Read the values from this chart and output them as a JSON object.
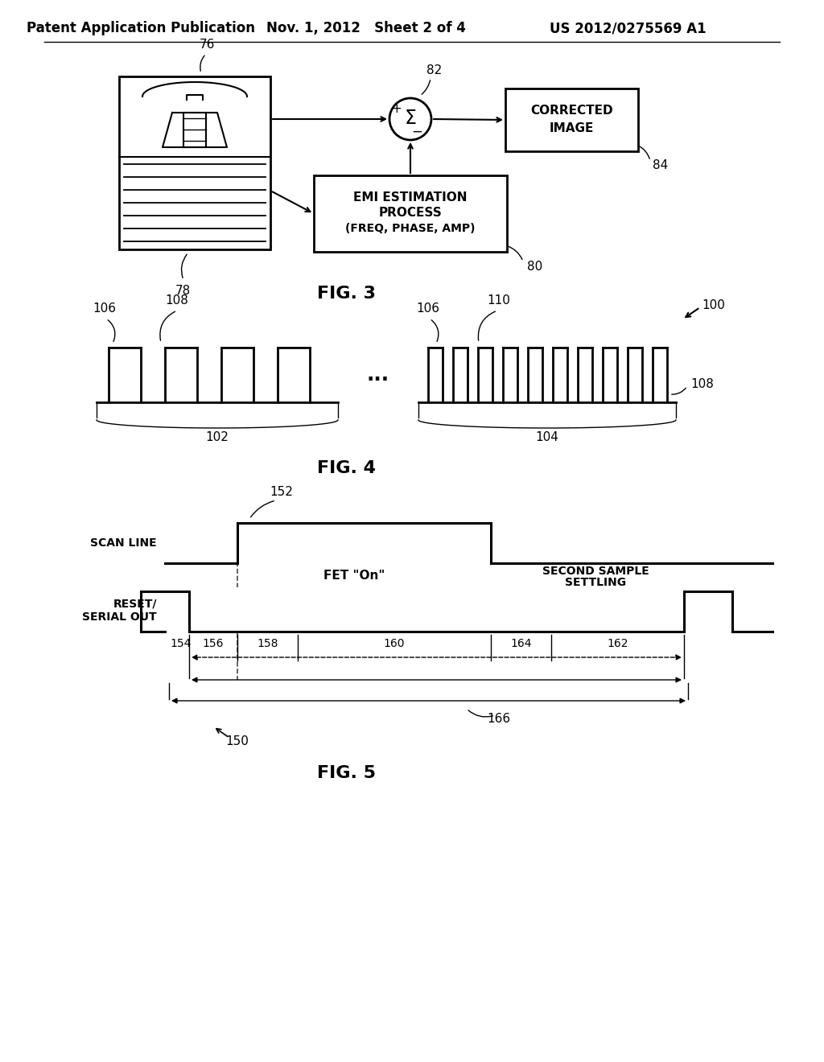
{
  "header_left": "Patent Application Publication",
  "header_mid": "Nov. 1, 2012   Sheet 2 of 4",
  "header_right": "US 2012/0275569 A1",
  "fig3_label": "FIG. 3",
  "fig4_label": "FIG. 4",
  "fig5_label": "FIG. 5",
  "bg_color": "#ffffff",
  "line_color": "#000000",
  "font_color": "#000000"
}
